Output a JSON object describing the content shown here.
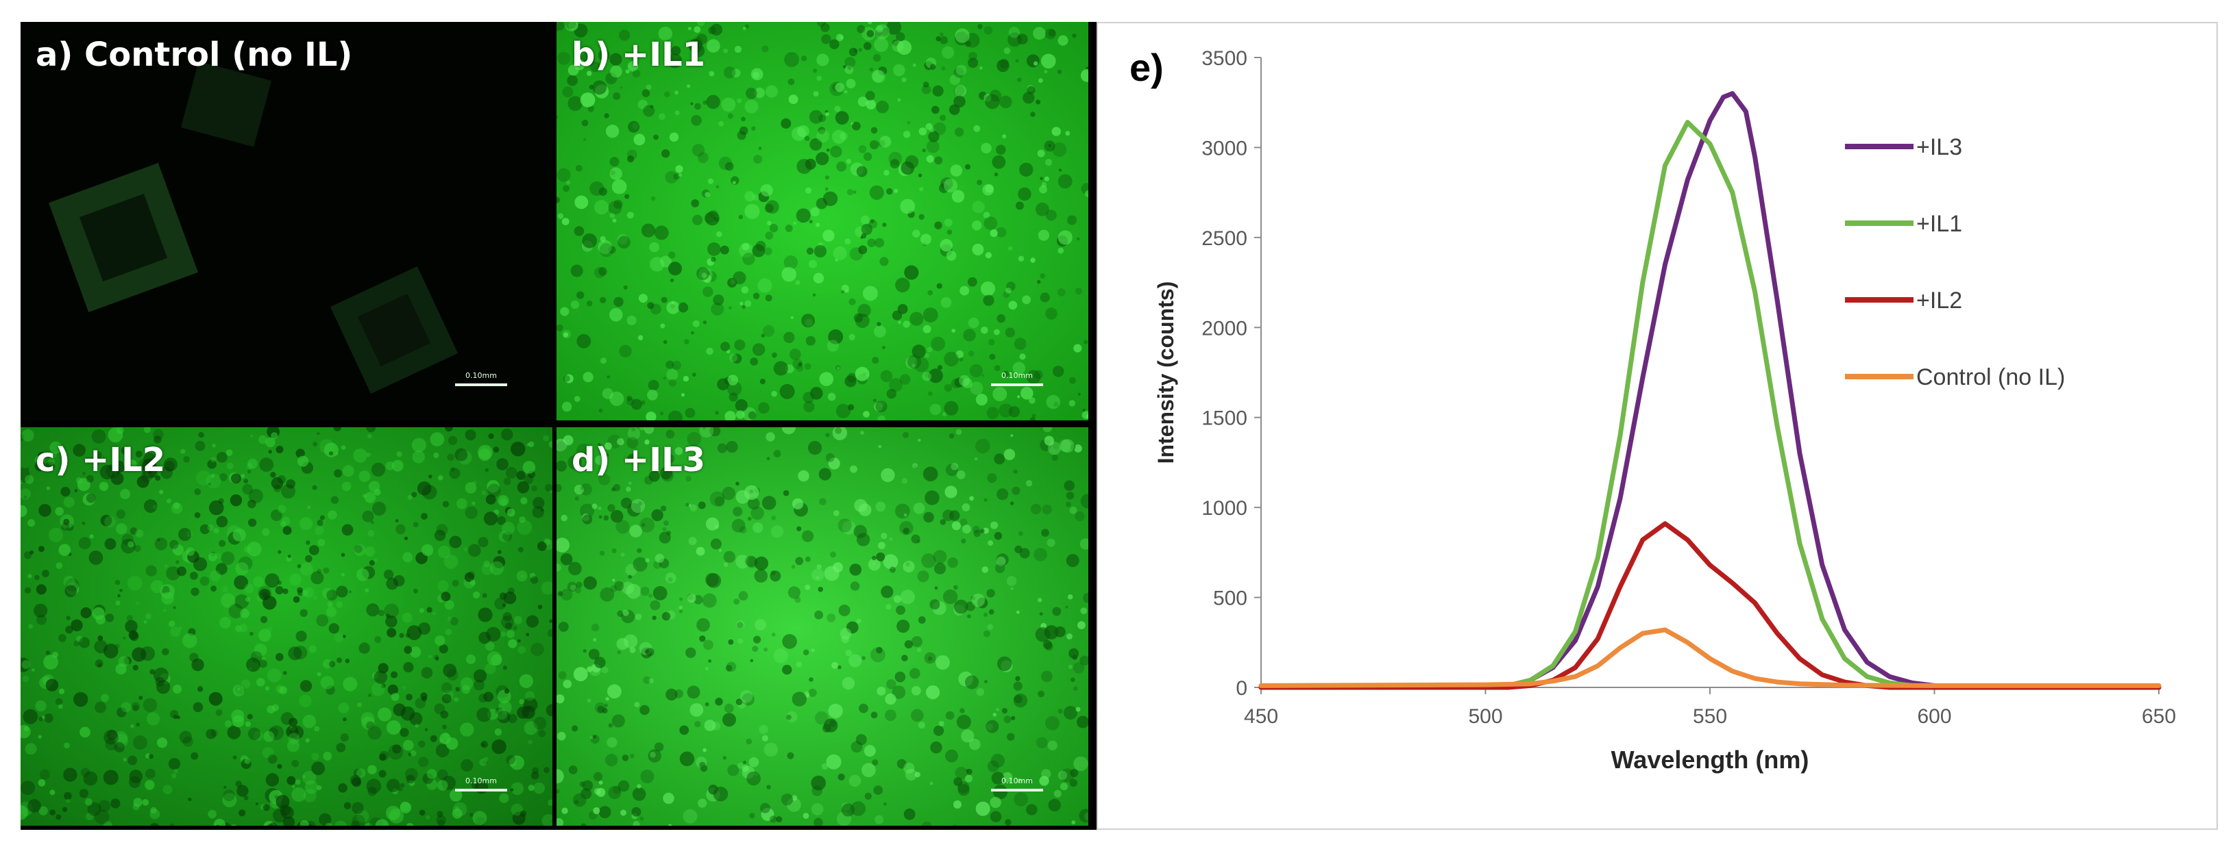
{
  "panels": [
    {
      "label": "a) Control (no IL)",
      "scale_label": "0.10mm"
    },
    {
      "label": "b) +IL1",
      "scale_label": "0.10mm"
    },
    {
      "label": "c) +IL2",
      "scale_label": "0.10mm"
    },
    {
      "label": "d) +IL3",
      "scale_label": "0.10mm"
    }
  ],
  "colors": {
    "il3": "#6a2a7e",
    "il1": "#72b84a",
    "il2": "#b81d1d",
    "control": "#ed8b3c",
    "fluorescence": "#22c222"
  },
  "chart_data": {
    "type": "line",
    "panel_label": "e)",
    "xlabel": "Wavelength (nm)",
    "ylabel": "Intensity (counts)",
    "xlim": [
      450,
      650
    ],
    "ylim": [
      0,
      3500
    ],
    "xticks": [
      450,
      500,
      550,
      600,
      650
    ],
    "yticks": [
      0,
      500,
      1000,
      1500,
      2000,
      2500,
      3000,
      3500
    ],
    "grid": false,
    "legend_position": "top-right",
    "series": [
      {
        "name": "+IL3",
        "color_key": "il3",
        "x": [
          450,
          500,
          505,
          510,
          515,
          520,
          525,
          530,
          535,
          540,
          545,
          550,
          553,
          555,
          558,
          560,
          565,
          570,
          575,
          580,
          585,
          590,
          595,
          600,
          610,
          620,
          650
        ],
        "y": [
          0,
          0,
          10,
          40,
          110,
          260,
          560,
          1050,
          1720,
          2350,
          2820,
          3150,
          3280,
          3300,
          3200,
          2950,
          2150,
          1300,
          680,
          320,
          140,
          60,
          25,
          10,
          0,
          0,
          0
        ]
      },
      {
        "name": "+IL1",
        "color_key": "il1",
        "x": [
          450,
          500,
          505,
          510,
          515,
          520,
          525,
          530,
          535,
          540,
          545,
          550,
          555,
          560,
          565,
          570,
          575,
          580,
          585,
          590,
          595,
          600,
          610,
          620,
          650
        ],
        "y": [
          0,
          0,
          10,
          40,
          120,
          310,
          720,
          1400,
          2250,
          2900,
          3140,
          3020,
          2750,
          2200,
          1450,
          800,
          380,
          160,
          60,
          25,
          10,
          0,
          0,
          0,
          0
        ]
      },
      {
        "name": "+IL2",
        "color_key": "il2",
        "x": [
          450,
          505,
          510,
          515,
          520,
          525,
          530,
          535,
          540,
          545,
          550,
          555,
          560,
          565,
          570,
          575,
          580,
          585,
          590,
          600,
          650
        ],
        "y": [
          0,
          0,
          10,
          40,
          110,
          270,
          560,
          820,
          910,
          820,
          680,
          580,
          470,
          300,
          160,
          70,
          30,
          10,
          0,
          0,
          0
        ]
      },
      {
        "name": "Control (no IL)",
        "color_key": "control",
        "x": [
          450,
          500,
          510,
          515,
          520,
          525,
          530,
          535,
          540,
          545,
          550,
          555,
          560,
          565,
          570,
          580,
          600,
          650
        ],
        "y": [
          10,
          15,
          20,
          35,
          60,
          120,
          220,
          300,
          320,
          250,
          160,
          90,
          50,
          30,
          20,
          12,
          10,
          10
        ]
      }
    ]
  }
}
